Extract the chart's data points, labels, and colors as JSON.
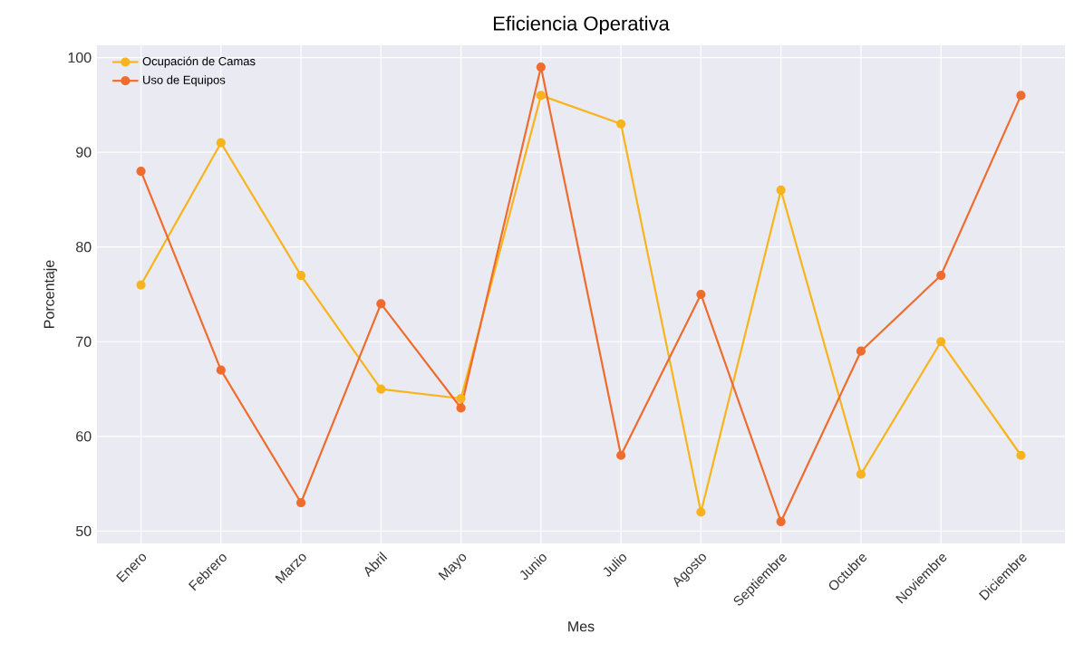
{
  "chart_data": {
    "type": "line",
    "title": "Eficiencia Operativa",
    "xlabel": "Mes",
    "ylabel": "Porcentaje",
    "categories": [
      "Enero",
      "Febrero",
      "Marzo",
      "Abril",
      "Mayo",
      "Junio",
      "Julio",
      "Agosto",
      "Septiembre",
      "Octubre",
      "Noviembre",
      "Diciembre"
    ],
    "series": [
      {
        "name": "Ocupación de Camas",
        "color": "#f7b41c",
        "values": [
          76,
          91,
          77,
          65,
          64,
          96,
          93,
          52,
          86,
          56,
          70,
          58
        ]
      },
      {
        "name": "Uso de Equipos",
        "color": "#ee6d2e",
        "values": [
          88,
          67,
          53,
          74,
          63,
          99,
          58,
          75,
          51,
          69,
          77,
          96
        ]
      }
    ],
    "ylim": [
      48.7,
      101.3
    ],
    "yticks": [
      50,
      60,
      70,
      80,
      90,
      100
    ],
    "grid": true,
    "legend": "top left",
    "marker": "circle",
    "line_style": "solid"
  }
}
